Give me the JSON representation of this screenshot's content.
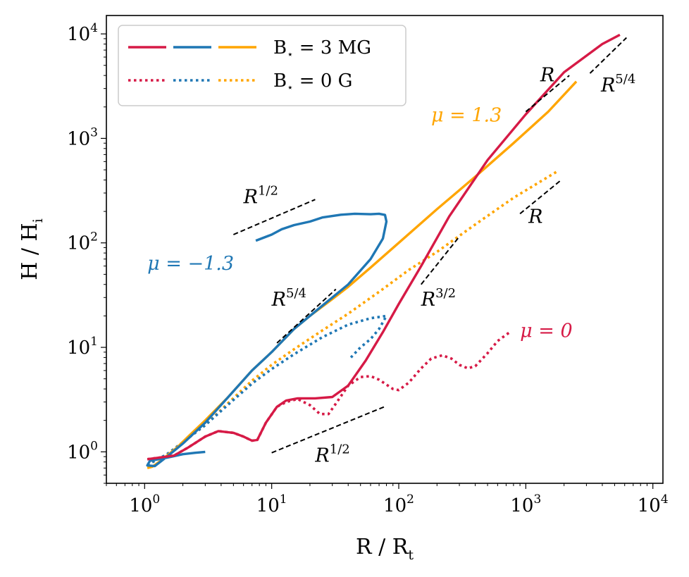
{
  "chart_data": {
    "type": "line",
    "xscale": "log",
    "yscale": "log",
    "xlim": [
      0.5,
      12000
    ],
    "ylim": [
      0.5,
      15000
    ],
    "xlabel": "R / R",
    "xlabel_sub": "t",
    "ylabel": "H / H",
    "ylabel_sub": "i",
    "x_ticks": [
      1,
      10,
      100,
      1000,
      10000
    ],
    "y_ticks": [
      1,
      10,
      100,
      1000,
      10000
    ],
    "tick_base": "10",
    "tick_exponents": [
      "0",
      "1",
      "2",
      "3",
      "4"
    ],
    "colors": {
      "red": "#d61a46",
      "blue": "#1f77b4",
      "orange": "#ffa500",
      "black": "#000000"
    },
    "legend": {
      "position": "top-left",
      "entries": [
        {
          "label": "B",
          "sub": "⋆",
          "value": " = 3 MG",
          "style": "solid"
        },
        {
          "label": "B",
          "sub": "⋆",
          "value": " = 0 G",
          "style": "dotted"
        }
      ]
    },
    "series": [
      {
        "name": "μ = 1.3, B = 3 MG",
        "color": "#ffa500",
        "style": "solid",
        "x": [
          1.05,
          1.15,
          1.3,
          1.5,
          1.8,
          2.2,
          3,
          4.5,
          7,
          10,
          15,
          20,
          30,
          40,
          60,
          100,
          200,
          400,
          800,
          1500,
          2500
        ],
        "y": [
          0.7,
          0.72,
          0.8,
          0.92,
          1.1,
          1.4,
          2.0,
          3.3,
          6,
          9,
          15,
          20,
          29,
          38,
          58,
          100,
          210,
          430,
          900,
          1800,
          3500
        ]
      },
      {
        "name": "μ = -1.3, B = 3 MG",
        "color": "#1f77b4",
        "style": "solid",
        "x": [
          3,
          2.5,
          2,
          1.5,
          1.1,
          1.05,
          1.2,
          1.5,
          2,
          3,
          4.5,
          7,
          10,
          15,
          25,
          40,
          60,
          75,
          80,
          78,
          70,
          60,
          45,
          35,
          25,
          20,
          15,
          12,
          10,
          7.5
        ],
        "y": [
          1.0,
          0.98,
          0.95,
          0.88,
          0.82,
          0.74,
          0.73,
          0.9,
          1.2,
          1.9,
          3.3,
          6,
          9,
          15,
          25,
          40,
          70,
          110,
          160,
          185,
          190,
          188,
          190,
          186,
          175,
          160,
          148,
          135,
          120,
          105
        ]
      },
      {
        "name": "μ = 0, B = 3 MG",
        "color": "#d61a46",
        "style": "solid",
        "x": [
          1.05,
          1.3,
          1.7,
          2.2,
          3,
          3.8,
          5,
          6,
          7,
          7.7,
          9,
          11,
          13,
          16,
          22,
          30,
          40,
          55,
          75,
          100,
          150,
          250,
          500,
          1000,
          2000,
          4000,
          5500
        ],
        "y": [
          0.85,
          0.88,
          0.92,
          1.1,
          1.4,
          1.58,
          1.52,
          1.4,
          1.28,
          1.3,
          1.9,
          2.7,
          3.1,
          3.25,
          3.25,
          3.35,
          4.3,
          7.5,
          14,
          26,
          60,
          180,
          620,
          1700,
          4300,
          8000,
          9800
        ]
      },
      {
        "name": "μ = 1.3, B = 0 G",
        "color": "#ffa500",
        "style": "dotted",
        "x": [
          1.05,
          1.5,
          2.2,
          3,
          4.5,
          7,
          10,
          15,
          25,
          40,
          70,
          120,
          200,
          400,
          800,
          1800
        ],
        "y": [
          0.75,
          0.95,
          1.35,
          1.8,
          2.9,
          4.8,
          6.8,
          9.6,
          14.5,
          21,
          34,
          55,
          82,
          150,
          270,
          490
        ]
      },
      {
        "name": "μ = -1.3, B = 0 G",
        "color": "#1f77b4",
        "style": "dotted",
        "x": [
          1.05,
          1.5,
          2.2,
          3,
          4.5,
          7,
          10,
          15,
          25,
          40,
          60,
          80,
          70,
          60,
          50,
          42
        ],
        "y": [
          0.75,
          0.95,
          1.35,
          1.8,
          2.8,
          4.5,
          6.2,
          8.6,
          12.5,
          16.5,
          19,
          20,
          15,
          12,
          10,
          8
        ]
      },
      {
        "name": "μ = 0, B = 0 G",
        "color": "#d61a46",
        "style": "dotted",
        "x": [
          1.05,
          1.3,
          1.7,
          2.2,
          3,
          3.8,
          5,
          6,
          7,
          7.7,
          9,
          11,
          13,
          16,
          20,
          24,
          28,
          32,
          40,
          50,
          60,
          70,
          80,
          90,
          100,
          120,
          150,
          180,
          220,
          260,
          300,
          350,
          400,
          500,
          600,
          700,
          750
        ],
        "y": [
          0.85,
          0.88,
          0.92,
          1.1,
          1.4,
          1.58,
          1.52,
          1.4,
          1.28,
          1.3,
          1.9,
          2.7,
          3.0,
          3.2,
          2.8,
          2.3,
          2.3,
          2.9,
          4.3,
          5.2,
          5.3,
          4.9,
          4.4,
          4.0,
          3.9,
          4.6,
          6.3,
          7.8,
          8.4,
          7.8,
          6.8,
          6.3,
          6.6,
          8.8,
          11.5,
          13.2,
          14
        ]
      }
    ],
    "reference_lines": [
      {
        "name": "ref-r12-upper",
        "x": [
          5,
          22
        ],
        "y": [
          120,
          260
        ]
      },
      {
        "name": "ref-r54-middle",
        "x": [
          11,
          32
        ],
        "y": [
          11,
          36
        ]
      },
      {
        "name": "ref-r12-lower",
        "x": [
          10,
          80
        ],
        "y": [
          0.98,
          2.75
        ]
      },
      {
        "name": "ref-r32",
        "x": [
          150,
          300
        ],
        "y": [
          40,
          115
        ]
      },
      {
        "name": "ref-r-lower",
        "x": [
          900,
          1900
        ],
        "y": [
          190,
          400
        ]
      },
      {
        "name": "ref-r-upper",
        "x": [
          1000,
          2200
        ],
        "y": [
          1800,
          4000
        ]
      },
      {
        "name": "ref-r54-upper",
        "x": [
          3200,
          6200
        ],
        "y": [
          4200,
          9200
        ]
      }
    ],
    "annotations": [
      {
        "name": "label-mu-1p3",
        "kind": "mu",
        "text": "μ = 1.3",
        "color": "#ffa500",
        "x": 180,
        "y": 1450
      },
      {
        "name": "label-mu-neg1p3",
        "kind": "mu",
        "text": "μ = −1.3",
        "color": "#1f77b4",
        "x": 1.05,
        "y": 55
      },
      {
        "name": "label-mu-0",
        "kind": "mu",
        "text": "μ = 0",
        "color": "#d61a46",
        "x": 900,
        "y": 12.5
      },
      {
        "name": "label-r12-upper",
        "kind": "power",
        "base": "R",
        "exp": "1/2",
        "color": "#000000",
        "x": 6,
        "y": 240
      },
      {
        "name": "label-r54-middle",
        "kind": "power",
        "base": "R",
        "exp": "5/4",
        "color": "#000000",
        "x": 10,
        "y": 25
      },
      {
        "name": "label-r12-lower",
        "kind": "power",
        "base": "R",
        "exp": "1/2",
        "color": "#000000",
        "x": 22,
        "y": 0.8
      },
      {
        "name": "label-r32",
        "kind": "power",
        "base": "R",
        "exp": "3/2",
        "color": "#000000",
        "x": 150,
        "y": 25
      },
      {
        "name": "label-r-lower",
        "kind": "power",
        "base": "R",
        "exp": "",
        "color": "#000000",
        "x": 1050,
        "y": 155
      },
      {
        "name": "label-r-upper",
        "kind": "power",
        "base": "R",
        "exp": "",
        "color": "#000000",
        "x": 1300,
        "y": 3500
      },
      {
        "name": "label-r54-upper",
        "kind": "power",
        "base": "R",
        "exp": "5/4",
        "color": "#000000",
        "x": 3900,
        "y": 2800
      }
    ]
  }
}
